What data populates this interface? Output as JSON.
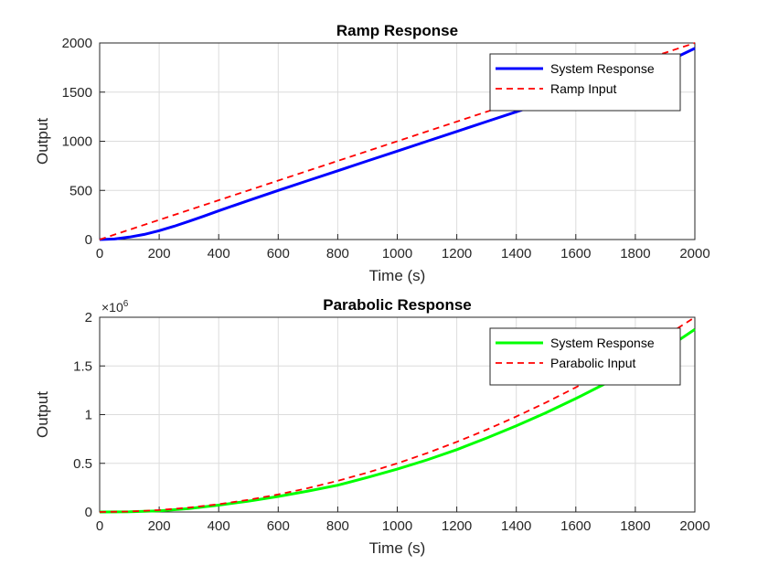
{
  "chart_data": [
    {
      "type": "line",
      "title": "Ramp Response",
      "xlabel": "Time (s)",
      "ylabel": "Output",
      "xlim": [
        0,
        2000
      ],
      "ylim": [
        0,
        2000
      ],
      "xticks": [
        "0",
        "200",
        "400",
        "600",
        "800",
        "1000",
        "1200",
        "1400",
        "1600",
        "1800",
        "2000"
      ],
      "yticks": [
        "0",
        "500",
        "1000",
        "1500",
        "2000"
      ],
      "grid": true,
      "legend_position": "top-right",
      "exponent_label": "",
      "series": [
        {
          "name": "System Response",
          "color": "#0000ff",
          "style": "solid",
          "x": [
            0,
            50,
            100,
            150,
            200,
            250,
            300,
            350,
            400,
            450,
            500,
            600,
            700,
            800,
            900,
            1000,
            1100,
            1200,
            1300,
            1400,
            1500,
            1600,
            1700,
            1800,
            1900,
            2000
          ],
          "y": [
            0,
            6,
            25,
            52,
            90,
            135,
            185,
            238,
            292,
            345,
            397,
            500,
            600,
            700,
            800,
            900,
            1000,
            1100,
            1200,
            1300,
            1400,
            1500,
            1600,
            1700,
            1800,
            1945
          ]
        },
        {
          "name": "Ramp Input",
          "color": "#ff0000",
          "style": "dashed",
          "x": [
            0,
            2000
          ],
          "y": [
            0,
            2000
          ]
        }
      ]
    },
    {
      "type": "line",
      "title": "Parabolic Response",
      "xlabel": "Time (s)",
      "ylabel": "Output",
      "xlim": [
        0,
        2000
      ],
      "ylim": [
        0,
        2
      ],
      "xticks": [
        "0",
        "200",
        "400",
        "600",
        "800",
        "1000",
        "1200",
        "1400",
        "1600",
        "1800",
        "2000"
      ],
      "yticks": [
        "0",
        "0.5",
        "1",
        "1.5",
        "2"
      ],
      "grid": true,
      "legend_position": "top-right",
      "exponent_label": "×10",
      "exponent_power": "6",
      "series": [
        {
          "name": "System Response",
          "color": "#00ff00",
          "style": "solid",
          "x": [
            0,
            100,
            200,
            300,
            400,
            500,
            600,
            700,
            800,
            900,
            1000,
            1100,
            1200,
            1300,
            1400,
            1500,
            1600,
            1700,
            1800,
            1900,
            2000
          ],
          "y": [
            0,
            0.002,
            0.012,
            0.035,
            0.07,
            0.112,
            0.16,
            0.215,
            0.275,
            0.355,
            0.44,
            0.535,
            0.64,
            0.76,
            0.885,
            1.02,
            1.165,
            1.32,
            1.48,
            1.67,
            1.875
          ]
        },
        {
          "name": "Parabolic Input",
          "color": "#ff0000",
          "style": "dashed",
          "x": [
            0,
            100,
            200,
            300,
            400,
            500,
            600,
            700,
            800,
            900,
            1000,
            1100,
            1200,
            1300,
            1400,
            1500,
            1600,
            1700,
            1800,
            1900,
            2000
          ],
          "y": [
            0,
            0.005,
            0.02,
            0.045,
            0.08,
            0.125,
            0.18,
            0.245,
            0.32,
            0.405,
            0.5,
            0.605,
            0.72,
            0.845,
            0.98,
            1.125,
            1.28,
            1.445,
            1.62,
            1.805,
            2.0
          ]
        }
      ]
    }
  ]
}
